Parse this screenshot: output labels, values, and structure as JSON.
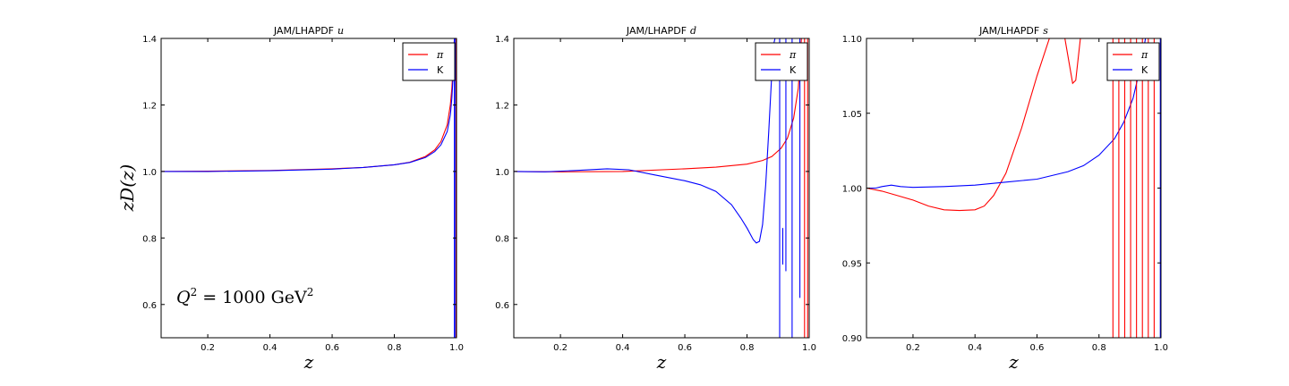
{
  "figure": {
    "ylabel": "zD(z)",
    "annotation": {
      "main": "Q",
      "sup": "2",
      "eq": " = 1000 GeV",
      "sup2": "2"
    }
  },
  "chart_data": [
    {
      "type": "line",
      "title": "JAM/LHAPDF",
      "title_var": "u",
      "xlabel": "z",
      "ylabel": "zD(z)",
      "xlim": [
        0.05,
        1.0
      ],
      "ylim": [
        0.5,
        1.4
      ],
      "xticks": [
        "0.2",
        "0.4",
        "0.6",
        "0.8",
        "1.0"
      ],
      "xtick_values": [
        0.2,
        0.4,
        0.6,
        0.8,
        1.0
      ],
      "yticks": [
        "0.6",
        "0.8",
        "1.0",
        "1.2",
        "1.4"
      ],
      "ytick_values": [
        0.6,
        0.8,
        1.0,
        1.2,
        1.4
      ],
      "legend_position": "top-right",
      "series": [
        {
          "name": "π",
          "color": "#ff0000",
          "x": [
            0.05,
            0.2,
            0.4,
            0.6,
            0.7,
            0.8,
            0.85,
            0.9,
            0.93,
            0.95,
            0.97,
            0.98,
            0.985,
            0.99,
            0.993
          ],
          "y": [
            1.0,
            1.001,
            1.003,
            1.008,
            1.012,
            1.02,
            1.028,
            1.045,
            1.065,
            1.09,
            1.14,
            1.2,
            1.25,
            1.33,
            1.4
          ]
        },
        {
          "name": "K",
          "color": "#0000ff",
          "x": [
            0.05,
            0.2,
            0.4,
            0.6,
            0.7,
            0.8,
            0.85,
            0.9,
            0.93,
            0.95,
            0.97,
            0.98,
            0.985,
            0.99,
            0.993
          ],
          "y": [
            1.0,
            1.0,
            1.002,
            1.007,
            1.012,
            1.02,
            1.027,
            1.042,
            1.06,
            1.08,
            1.12,
            1.17,
            1.22,
            1.3,
            1.4
          ]
        }
      ]
    },
    {
      "type": "line",
      "title": "JAM/LHAPDF",
      "title_var": "d",
      "xlabel": "z",
      "xlim": [
        0.05,
        1.0
      ],
      "ylim": [
        0.5,
        1.4
      ],
      "xticks": [
        "0.2",
        "0.4",
        "0.6",
        "0.8",
        "1.0"
      ],
      "xtick_values": [
        0.2,
        0.4,
        0.6,
        0.8,
        1.0
      ],
      "yticks": [
        "0.6",
        "0.8",
        "1.0",
        "1.2",
        "1.4"
      ],
      "ytick_values": [
        0.6,
        0.8,
        1.0,
        1.2,
        1.4
      ],
      "legend_position": "top-right",
      "series": [
        {
          "name": "π",
          "color": "#ff0000",
          "x": [
            0.05,
            0.2,
            0.4,
            0.6,
            0.7,
            0.8,
            0.85,
            0.88,
            0.91,
            0.93,
            0.95,
            0.965,
            0.975
          ],
          "y": [
            1.0,
            0.999,
            1.0,
            1.008,
            1.013,
            1.022,
            1.033,
            1.045,
            1.07,
            1.1,
            1.16,
            1.25,
            1.4
          ]
        },
        {
          "name": "K",
          "color": "#0000ff",
          "x": [
            0.05,
            0.15,
            0.25,
            0.35,
            0.42,
            0.5,
            0.6,
            0.65,
            0.7,
            0.75,
            0.78,
            0.8,
            0.82,
            0.83,
            0.84,
            0.85,
            0.86,
            0.87,
            0.88,
            0.885,
            0.89
          ],
          "y": [
            1.0,
            0.999,
            1.003,
            1.008,
            1.005,
            0.99,
            0.972,
            0.96,
            0.94,
            0.9,
            0.86,
            0.83,
            0.795,
            0.785,
            0.79,
            0.84,
            0.96,
            1.12,
            1.3,
            1.38,
            1.4
          ]
        }
      ]
    },
    {
      "type": "line",
      "title": "JAM/LHAPDF",
      "title_var": "s",
      "xlabel": "z",
      "xlim": [
        0.05,
        1.0
      ],
      "ylim": [
        0.9,
        1.1
      ],
      "xticks": [
        "0.2",
        "0.4",
        "0.6",
        "0.8",
        "1.0"
      ],
      "xtick_values": [
        0.2,
        0.4,
        0.6,
        0.8,
        1.0
      ],
      "yticks": [
        "0.90",
        "0.95",
        "1.00",
        "1.05",
        "1.10"
      ],
      "ytick_values": [
        0.9,
        0.95,
        1.0,
        1.05,
        1.1
      ],
      "legend_position": "top-right",
      "series": [
        {
          "name": "π",
          "color": "#ff0000",
          "x": [
            0.05,
            0.1,
            0.15,
            0.2,
            0.25,
            0.3,
            0.35,
            0.4,
            0.43,
            0.46,
            0.5,
            0.55,
            0.6,
            0.64
          ],
          "y": [
            1.0,
            0.998,
            0.995,
            0.992,
            0.988,
            0.9855,
            0.985,
            0.9855,
            0.988,
            0.995,
            1.01,
            1.04,
            1.075,
            1.1
          ]
        },
        {
          "name": "K",
          "color": "#0000ff",
          "x": [
            0.05,
            0.08,
            0.1,
            0.13,
            0.16,
            0.2,
            0.3,
            0.4,
            0.5,
            0.6,
            0.7,
            0.75,
            0.8,
            0.85,
            0.88,
            0.91,
            0.93,
            0.95
          ],
          "y": [
            1.0,
            1.0,
            1.001,
            1.002,
            1.001,
            1.0005,
            1.001,
            1.002,
            1.004,
            1.006,
            1.011,
            1.015,
            1.022,
            1.033,
            1.044,
            1.06,
            1.078,
            1.1
          ]
        }
      ]
    }
  ]
}
